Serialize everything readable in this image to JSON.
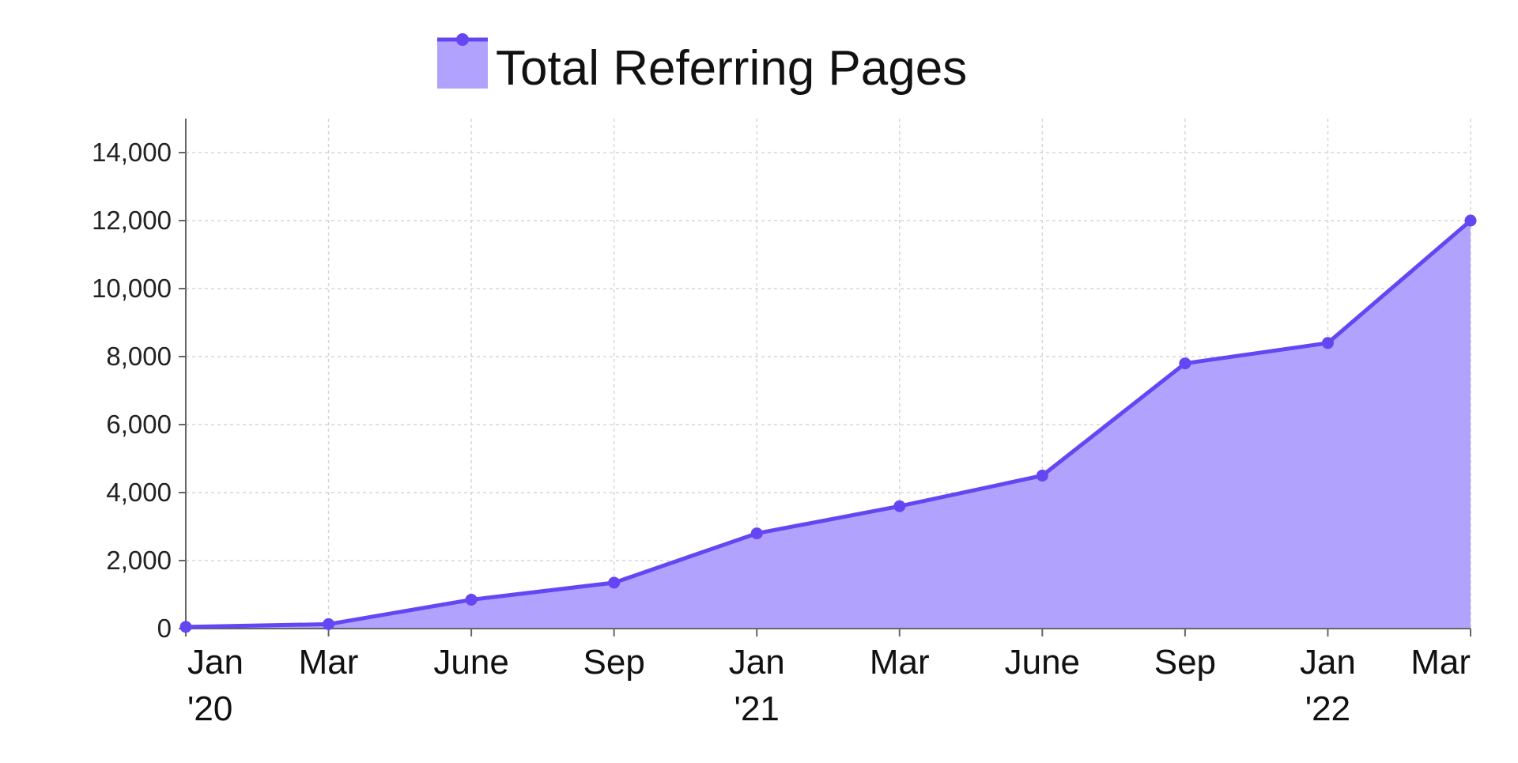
{
  "chart_data": {
    "type": "area",
    "legend": {
      "placement": "top-center"
    },
    "series": [
      {
        "name": "Total Referring Pages",
        "values": [
          50,
          130,
          850,
          1350,
          2800,
          3600,
          4500,
          7800,
          8400,
          12000
        ]
      }
    ],
    "categories": [
      [
        "Jan",
        "'20"
      ],
      [
        "Mar",
        ""
      ],
      [
        "June",
        ""
      ],
      [
        "Sep",
        ""
      ],
      [
        "Jan",
        "'21"
      ],
      [
        "Mar",
        ""
      ],
      [
        "June",
        ""
      ],
      [
        "Sep",
        ""
      ],
      [
        "Jan",
        "'22"
      ],
      [
        "Mar",
        ""
      ]
    ],
    "ylim": [
      0,
      15000
    ],
    "yticks": [
      0,
      2000,
      4000,
      6000,
      8000,
      10000,
      12000,
      14000
    ],
    "ytick_labels": [
      "0",
      "2,000",
      "4,000",
      "6,000",
      "8,000",
      "10,000",
      "12,000",
      "14,000"
    ],
    "grid": true,
    "colors": {
      "line": "#6446f2",
      "fill": "#b1a2fd",
      "marker": "#6446f2"
    }
  }
}
